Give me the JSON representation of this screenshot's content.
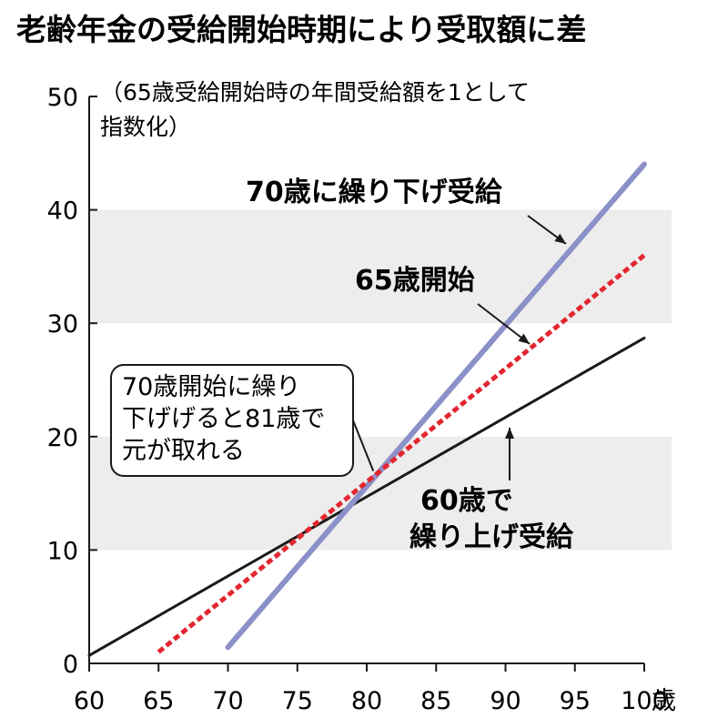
{
  "chart_data": {
    "type": "line",
    "title": "老齢年金の受給開始時期により受取額に差",
    "note_lines": [
      "（65歳受給開始時の年間受給額を1として",
      "指数化）"
    ],
    "x_unit": "歳",
    "xlim": [
      60,
      100
    ],
    "ylim": [
      0,
      50
    ],
    "x_ticks": [
      60,
      65,
      70,
      75,
      80,
      85,
      90,
      95,
      100
    ],
    "y_ticks": [
      0,
      10,
      20,
      30,
      40,
      50
    ],
    "shaded_bands": [
      [
        10,
        20
      ],
      [
        30,
        40
      ]
    ],
    "colors": {
      "band": "#ededed",
      "series_60": "#1a1a1a",
      "series_65": "#e3262f",
      "series_70": "#8c90c8",
      "axis": "#1a1a1a"
    },
    "series": [
      {
        "name": "60歳で繰り上げ受給",
        "label_lines": [
          "60歳で",
          "繰り上げ受給"
        ],
        "x": [
          60,
          100
        ],
        "y": [
          0.7,
          28.7
        ]
      },
      {
        "name": "65歳開始",
        "label_lines": [
          "65歳開始"
        ],
        "x": [
          65,
          100
        ],
        "y": [
          1,
          36
        ]
      },
      {
        "name": "70歳に繰り下げ受給",
        "label_lines": [
          "70歳に繰り下げ受給"
        ],
        "x": [
          70,
          100
        ],
        "y": [
          1.42,
          44.02
        ]
      }
    ],
    "callout": {
      "lines": [
        "70歳開始に繰り",
        "下げげると81歳で",
        "元が取れる"
      ],
      "point": [
        81,
        16.8
      ]
    }
  }
}
